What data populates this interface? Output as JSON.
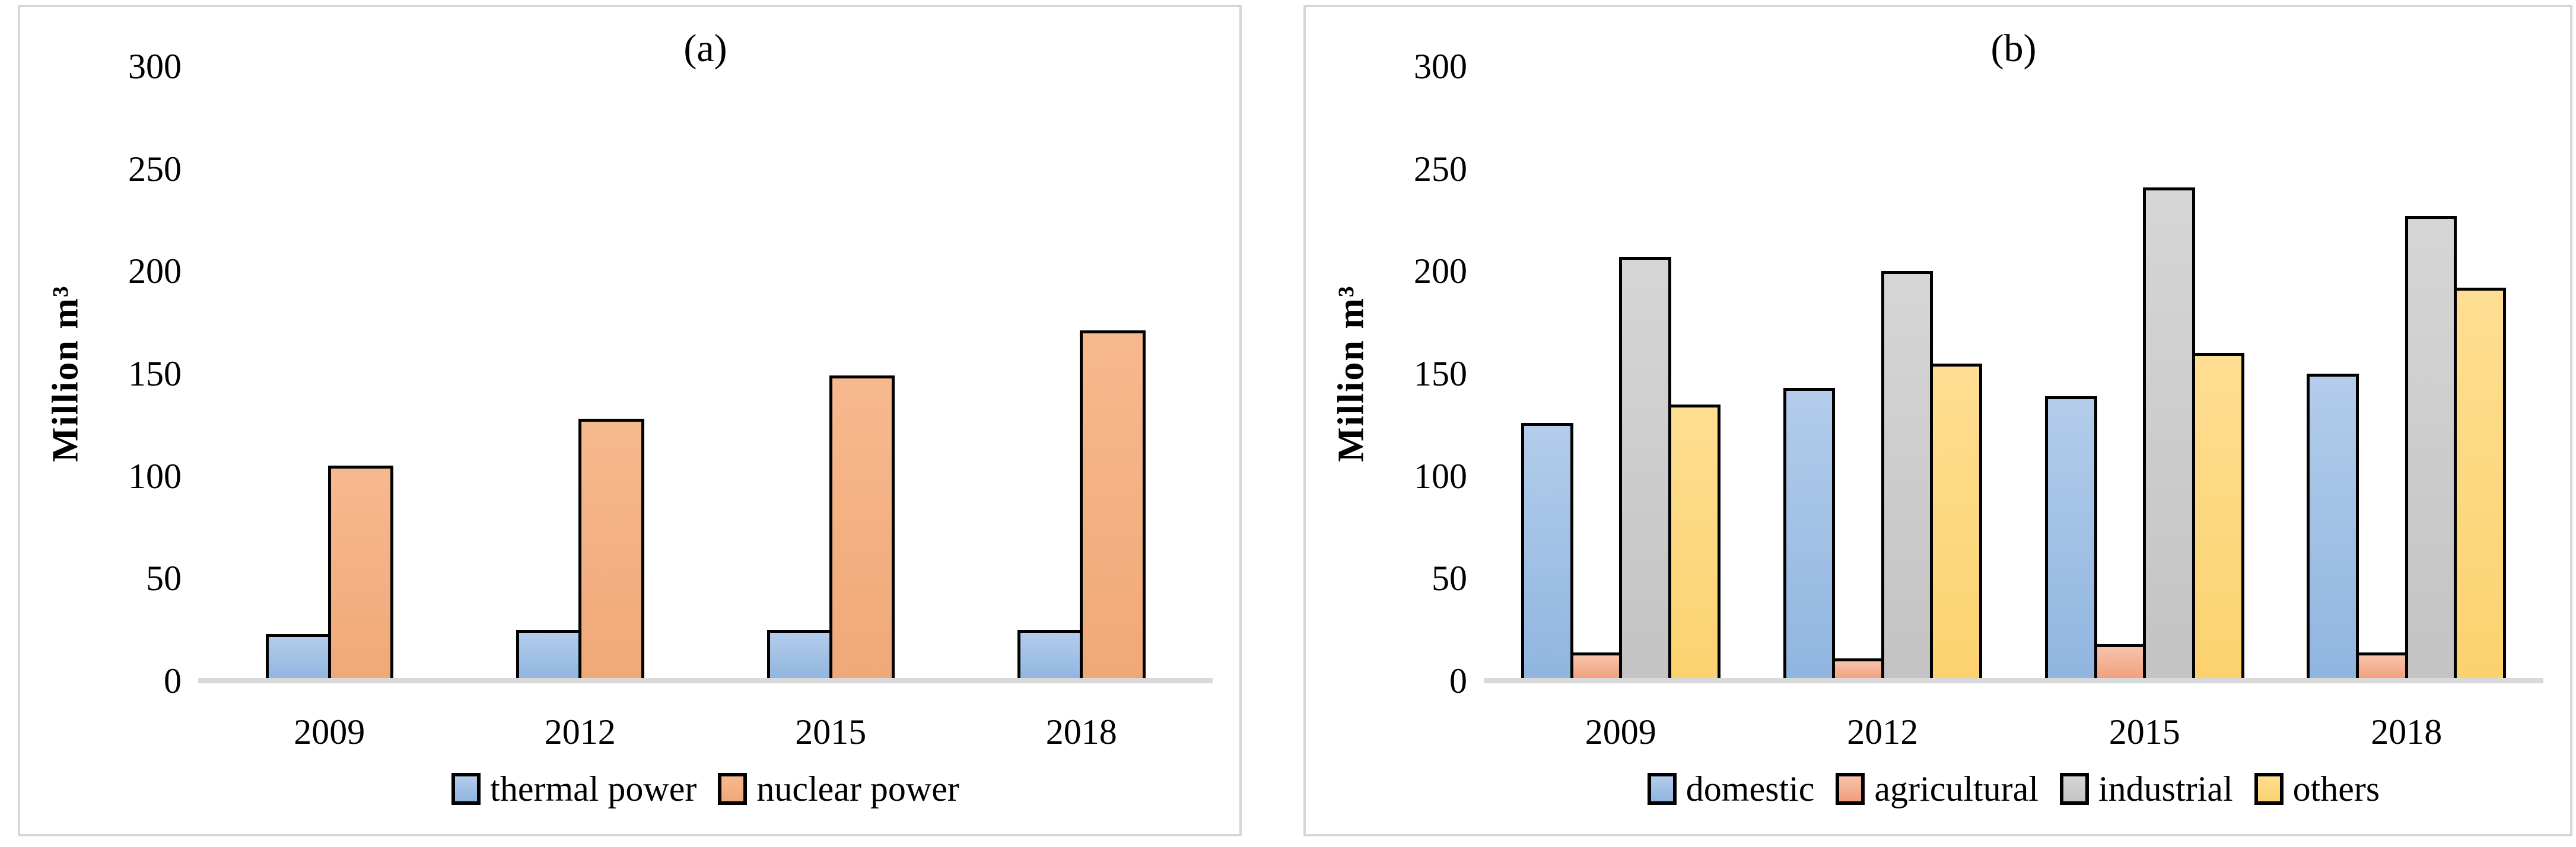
{
  "figure": {
    "background": "#ffffff",
    "panel_border_color": "#d6d6d6",
    "axis_line_color": "#d9d9d9",
    "bar_border_color": "#000000"
  },
  "chart_data": [
    {
      "type": "bar",
      "title": "(a)",
      "ylabel": "Million m³",
      "xlabel": "",
      "categories": [
        "2009",
        "2012",
        "2015",
        "2018"
      ],
      "series": [
        {
          "name": "thermal power",
          "values": [
            23,
            25,
            25,
            25
          ],
          "color_top": "#b3ccea",
          "color_bottom": "#8fb5e0"
        },
        {
          "name": "nuclear power",
          "values": [
            105,
            128,
            149,
            171
          ],
          "color_top": "#f6b98e",
          "color_bottom": "#f0a878"
        }
      ],
      "ylim": [
        0,
        300
      ],
      "ytick_step": 50,
      "grid": false,
      "legend_position": "bottom",
      "group_width_pct": 51
    },
    {
      "type": "bar",
      "title": "(b)",
      "ylabel": "Million m³",
      "xlabel": "",
      "categories": [
        "2009",
        "2012",
        "2015",
        "2018"
      ],
      "series": [
        {
          "name": "domestic",
          "values": [
            126,
            143,
            139,
            150
          ],
          "color_top": "#b3ccea",
          "color_bottom": "#8fb5e0"
        },
        {
          "name": "agricultural",
          "values": [
            14,
            11,
            18,
            14
          ],
          "color_top": "#f8c3ac",
          "color_bottom": "#f09d7a"
        },
        {
          "name": "industrial",
          "values": [
            207,
            200,
            241,
            227
          ],
          "color_top": "#d6d6d6",
          "color_bottom": "#c3c3c3"
        },
        {
          "name": "others",
          "values": [
            135,
            155,
            160,
            192
          ],
          "color_top": "#fede92",
          "color_bottom": "#fcd26e"
        }
      ],
      "ylim": [
        0,
        300
      ],
      "ytick_step": 50,
      "grid": false,
      "legend_position": "bottom",
      "group_width_pct": 76
    }
  ]
}
